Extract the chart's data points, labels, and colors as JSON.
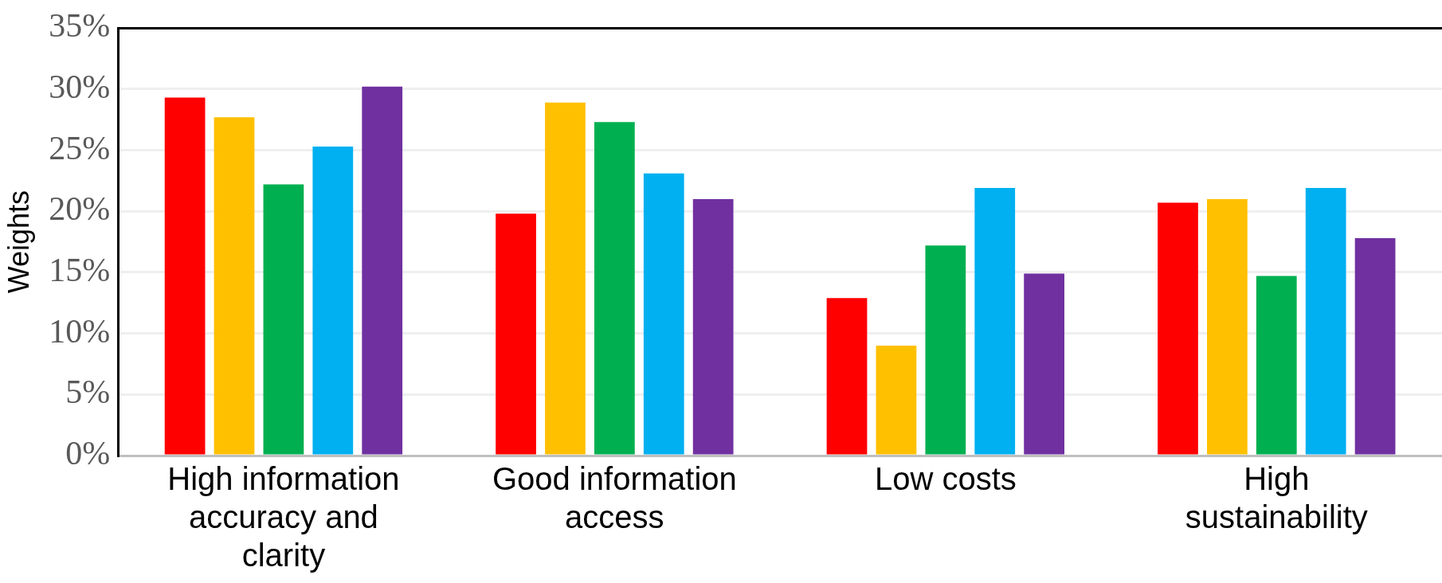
{
  "chart_data": {
    "type": "bar",
    "ylabel": "Weights",
    "categories": [
      "High information accuracy and clarity",
      "Good information access",
      "Low costs",
      "High sustainability"
    ],
    "series": [
      {
        "color": "#ff0000",
        "values": [
          29.3,
          19.8,
          12.9,
          20.7
        ]
      },
      {
        "color": "#ffc000",
        "values": [
          27.7,
          28.9,
          9.0,
          21.0
        ]
      },
      {
        "color": "#00b050",
        "values": [
          22.2,
          27.3,
          17.2,
          14.7
        ]
      },
      {
        "color": "#00b0f0",
        "values": [
          25.3,
          23.1,
          21.9,
          21.9
        ]
      },
      {
        "color": "#7030a0",
        "values": [
          30.2,
          21.0,
          14.9,
          17.8
        ]
      }
    ],
    "ylim": [
      0,
      35
    ],
    "yticks": [
      {
        "value": 0,
        "label": "0%"
      },
      {
        "value": 5,
        "label": "5%"
      },
      {
        "value": 10,
        "label": "10%"
      },
      {
        "value": 15,
        "label": "15%"
      },
      {
        "value": 20,
        "label": "20%"
      },
      {
        "value": 25,
        "label": "25%"
      },
      {
        "value": 30,
        "label": "30%"
      },
      {
        "value": 35,
        "label": "35%"
      }
    ],
    "grid": "y",
    "legend": false
  }
}
